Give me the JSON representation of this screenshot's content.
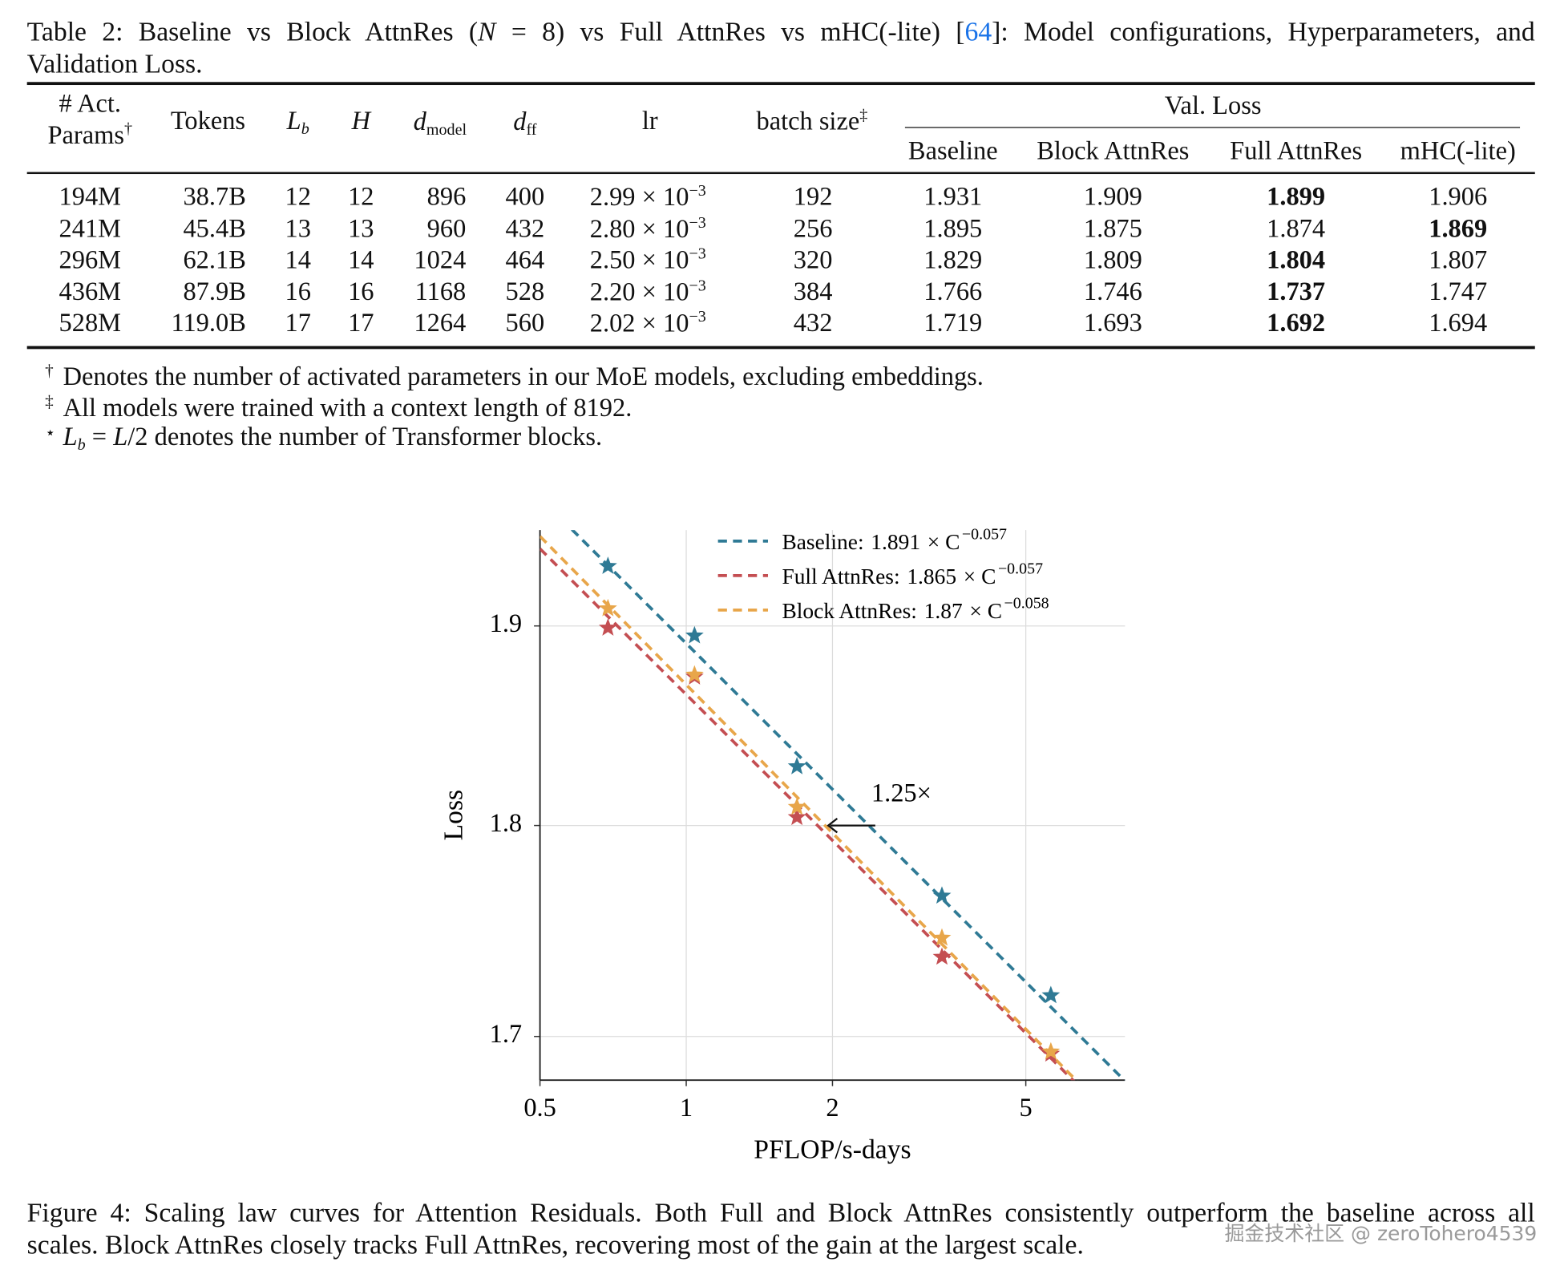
{
  "table": {
    "caption": [
      "Table 2: Baseline vs Block AttnRes (",
      "N",
      " = 8) vs Full AttnRes vs mHC(-lite) [",
      "64",
      "]: Model configurations, Hyperparameters, and",
      "Validation Loss."
    ],
    "headers": [
      {
        "lines": [
          "# Act.",
          "Params"
        ],
        "sup": "†"
      },
      {
        "text": "Tokens"
      },
      {
        "main": "L",
        "sub": "b"
      },
      {
        "main": "H"
      },
      {
        "main": "d",
        "sub": "model"
      },
      {
        "main": "d",
        "sub": "ff"
      },
      {
        "text": "lr"
      },
      {
        "text": "batch size",
        "sup": "‡"
      }
    ],
    "group": "Val. Loss",
    "subheaders": [
      "Baseline",
      "Block AttnRes",
      "Full AttnRes",
      "mHC(-lite)"
    ],
    "rows": [
      [
        "194M",
        "38.7B",
        "12",
        "12",
        "896",
        "400",
        {
          "mantissa": "2.99 × 10",
          "exponent": "−3"
        },
        "192",
        "1.931",
        "1.909",
        {
          "text": "1.899",
          "bold": true
        },
        "1.906"
      ],
      [
        "241M",
        "45.4B",
        "13",
        "13",
        "960",
        "432",
        {
          "mantissa": "2.80 × 10",
          "exponent": "−3"
        },
        "256",
        "1.895",
        "1.875",
        "1.874",
        {
          "text": "1.869",
          "bold": true
        }
      ],
      [
        "296M",
        "62.1B",
        "14",
        "14",
        "1024",
        "464",
        {
          "mantissa": "2.50 × 10",
          "exponent": "−3"
        },
        "320",
        "1.829",
        "1.809",
        {
          "text": "1.804",
          "bold": true
        },
        "1.807"
      ],
      [
        "436M",
        "87.9B",
        "16",
        "16",
        "1168",
        "528",
        {
          "mantissa": "2.20 × 10",
          "exponent": "−3"
        },
        "384",
        "1.766",
        "1.746",
        {
          "text": "1.737",
          "bold": true
        },
        "1.747"
      ],
      [
        "528M",
        "119.0B",
        "17",
        "17",
        "1264",
        "560",
        {
          "mantissa": "2.02 × 10",
          "exponent": "−3"
        },
        "432",
        "1.719",
        "1.693",
        {
          "text": "1.692",
          "bold": true
        },
        "1.694"
      ]
    ],
    "footnotes": [
      {
        "mark": "†",
        "text": "Denotes the number of activated parameters in our MoE models, excluding embeddings."
      },
      {
        "mark": "‡",
        "text": "All models were trained with a context length of 8192."
      },
      {
        "mark": "⋆",
        "math": {
          "lhs": "L",
          "sub": "b",
          "eq": " = ",
          "rhs": "L",
          "tail": "/2"
        },
        "text": " denotes the number of Transformer blocks."
      }
    ]
  },
  "chart_data": {
    "type": "scatter",
    "x_scale": "log",
    "y_scale": "log",
    "xlabel": "PFLOP/s-days",
    "ylabel": "Loss",
    "x": [
      0.69,
      1.04,
      1.69,
      3.36,
      5.63
    ],
    "series": [
      {
        "name": "Baseline",
        "color": "#2f7a95",
        "values": [
          1.931,
          1.895,
          1.829,
          1.766,
          1.719
        ],
        "fit": {
          "coefficient": 1.891,
          "exponent": {
            "value": -0.057,
            "label": "−0.057"
          }
        }
      },
      {
        "name": "Full AttnRes",
        "color": "#c44e52",
        "values": [
          1.899,
          1.874,
          1.804,
          1.737,
          1.692
        ],
        "fit": {
          "coefficient": 1.865,
          "exponent": {
            "value": -0.057,
            "label": "−0.057"
          }
        }
      },
      {
        "name": "Block AttnRes",
        "color": "#e8a64a",
        "values": [
          1.909,
          1.875,
          1.809,
          1.746,
          1.693
        ],
        "fit": {
          "coefficient": 1.87,
          "exponent": {
            "value": -0.058,
            "label": "−0.058"
          }
        }
      }
    ],
    "fit_separator": ":",
    "fit_operator": "× C",
    "xlim": [
      0.5,
      8
    ],
    "ylim": [
      1.68,
      1.95
    ],
    "xticks": [
      0.5,
      1,
      2,
      5
    ],
    "yticks": [
      1.7,
      1.8,
      1.9
    ],
    "grid": true,
    "legend": "upper right",
    "annotation": {
      "text": "1.25×",
      "x_from": 2.45,
      "x_to": 1.96,
      "y": 1.8
    }
  },
  "figure_caption": [
    "Figure 4: Scaling law curves for Attention Residuals. Both Full and Block AttnRes consistently outperform the baseline across all",
    "scales. Block AttnRes closely tracks Full AttnRes, recovering most of the gain at the largest scale."
  ],
  "watermark": "掘金技术社区 @ zeroTohero4539"
}
